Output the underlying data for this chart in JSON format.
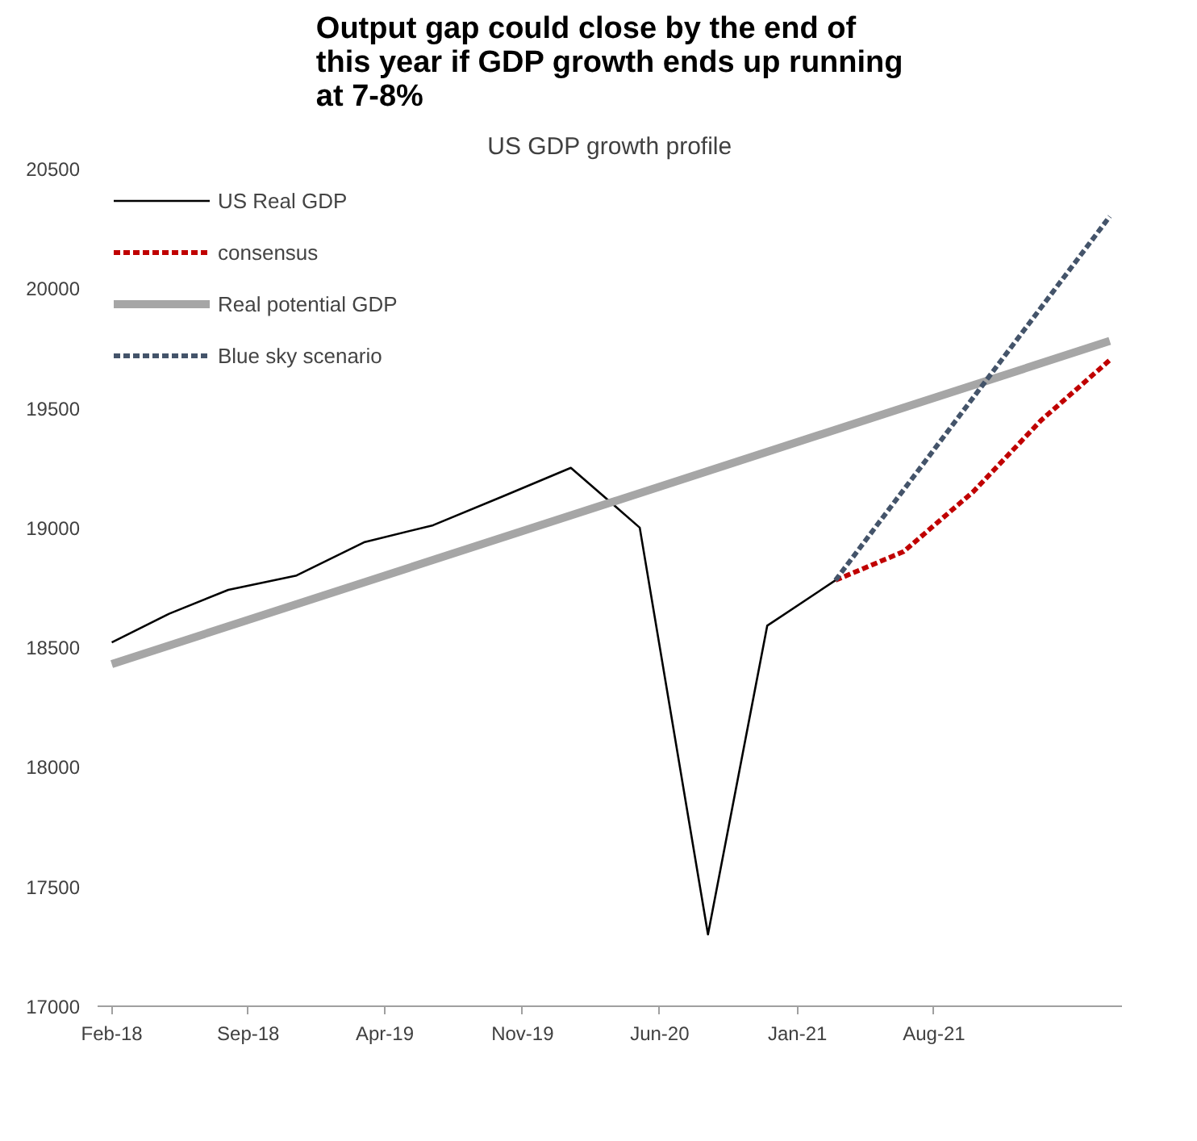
{
  "chart_data": {
    "type": "line",
    "title": "Output gap could close by the end of\nthis year if GDP growth ends up running\nat 7-8%",
    "subtitle": "US GDP growth profile",
    "xlim": [
      "2018-01-10",
      "2022-05-20"
    ],
    "xticks": [
      {
        "value": "2018-02-01",
        "label": "Feb-18"
      },
      {
        "value": "2018-09-01",
        "label": "Sep-18"
      },
      {
        "value": "2019-04-01",
        "label": "Apr-19"
      },
      {
        "value": "2019-11-01",
        "label": "Nov-19"
      },
      {
        "value": "2020-06-01",
        "label": "Jun-20"
      },
      {
        "value": "2021-01-01",
        "label": "Jan-21"
      },
      {
        "value": "2021-08-01",
        "label": "Aug-21"
      }
    ],
    "ylim": [
      17000,
      20500
    ],
    "yticks": [
      17000,
      17500,
      18000,
      18500,
      19000,
      19500,
      20000,
      20500
    ],
    "grid": false,
    "legend": "top left",
    "series": [
      {
        "name": "US Real GDP",
        "color": "#000000",
        "line_style": "solid",
        "x": [
          "2018-02-01",
          "2018-05-01",
          "2018-08-01",
          "2018-11-15",
          "2019-03-01",
          "2019-06-15",
          "2019-10-01",
          "2020-01-15",
          "2020-05-01",
          "2020-08-15",
          "2020-11-15",
          "2021-03-01"
        ],
        "values": [
          18520,
          18640,
          18740,
          18800,
          18940,
          19010,
          19130,
          19250,
          19000,
          17300,
          18590,
          18780
        ]
      },
      {
        "name": "consensus",
        "color": "#c00000",
        "line_style": "dashed",
        "x": [
          "2021-03-01",
          "2021-06-15",
          "2021-10-01",
          "2022-01-15",
          "2022-05-01"
        ],
        "values": [
          18780,
          18900,
          19150,
          19450,
          19700
        ]
      },
      {
        "name": "Real potential GDP",
        "color": "#a6a6a6",
        "line_style": "solid",
        "x": [
          "2018-02-01",
          "2022-05-01"
        ],
        "values": [
          18430,
          19780
        ]
      },
      {
        "name": "Blue sky scenario",
        "color": "#44546a",
        "line_style": "dashed",
        "x": [
          "2021-03-01",
          "2022-05-01"
        ],
        "values": [
          18780,
          20300
        ]
      }
    ]
  }
}
